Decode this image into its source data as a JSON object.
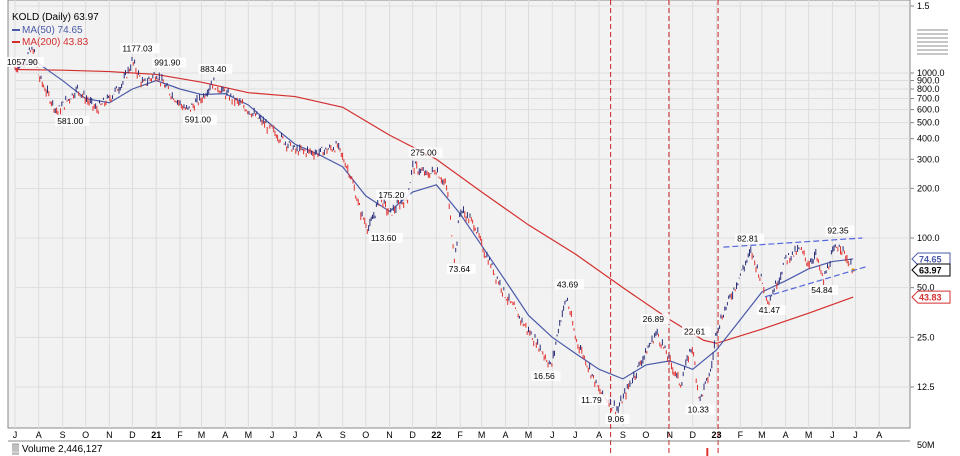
{
  "header": {
    "symbol_line": "KOLD (Daily) 63.97",
    "ma50_label": "MA(50) 74.65",
    "ma200_label": "MA(200) 43.83",
    "volume_label": "Volume 2,446,127"
  },
  "colors": {
    "up_bar": "#2b2f7a",
    "down_bar": "#e0312f",
    "ma50": "#4a5aa8",
    "ma200": "#d42f2f",
    "trendline": "#5566dd",
    "event_line": "#cc2222",
    "plot_bg": "#f2f2f2"
  },
  "chart_data": {
    "type": "line",
    "title": "KOLD (Daily) 63.97",
    "y_scale": "log",
    "y_ticks": [
      "1.5",
      "1000.0",
      "900.0",
      "800.0",
      "700.0",
      "600.0",
      "500.0",
      "400.0",
      "300.0",
      "200.0",
      "100.0",
      "50.0",
      "25.0",
      "12.5"
    ],
    "x_ticks": [
      "J",
      "A",
      "S",
      "O",
      "N",
      "D",
      "21",
      "F",
      "M",
      "A",
      "M",
      "J",
      "J",
      "A",
      "S",
      "O",
      "N",
      "D",
      "22",
      "F",
      "M",
      "A",
      "M",
      "J",
      "J",
      "A",
      "S",
      "O",
      "N",
      "D",
      "23",
      "F",
      "M",
      "A",
      "M",
      "J",
      "J",
      "A"
    ],
    "price_labels": {
      "last": "63.97",
      "ma50": "74.65",
      "ma200": "43.83"
    },
    "volume_axis_label": "50M",
    "annotations": [
      "1057.90",
      "581.00",
      "1177.03",
      "991.90",
      "883.40",
      "591.00",
      "175.20",
      "113.60",
      "275.00",
      "73.64",
      "43.69",
      "16.56",
      "11.79",
      "9.06",
      "26.89",
      "22.61",
      "10.33",
      "82.81",
      "41.47",
      "92.35",
      "54.84"
    ],
    "series": [
      {
        "name": "KOLD",
        "points": [
          [
            "2020-07",
            1057.9
          ],
          [
            "2020-07-25",
            1400
          ],
          [
            "2020-08",
            950
          ],
          [
            "2020-08-25",
            581.0
          ],
          [
            "2020-09-20",
            800
          ],
          [
            "2020-10-15",
            600
          ],
          [
            "2020-11",
            700
          ],
          [
            "2020-11-20",
            900
          ],
          [
            "2020-12",
            1177.03
          ],
          [
            "2020-12-15",
            850
          ],
          [
            "2021-01",
            991.9
          ],
          [
            "2021-01-15",
            800
          ],
          [
            "2021-02-10",
            591.0
          ],
          [
            "2021-03",
            700
          ],
          [
            "2021-03-15",
            883.4
          ],
          [
            "2021-04",
            750
          ],
          [
            "2021-05",
            600
          ],
          [
            "2021-06",
            450
          ],
          [
            "2021-07",
            340
          ],
          [
            "2021-08",
            330
          ],
          [
            "2021-08-25",
            360
          ],
          [
            "2021-09-10",
            250
          ],
          [
            "2021-09-25",
            140
          ],
          [
            "2021-10-05",
            113.6
          ],
          [
            "2021-10-20",
            175.2
          ],
          [
            "2021-11",
            140
          ],
          [
            "2021-11-25",
            180
          ],
          [
            "2021-12",
            275.0
          ],
          [
            "2021-12-20",
            240
          ],
          [
            "2022-01",
            260
          ],
          [
            "2022-01-15",
            200
          ],
          [
            "2022-01-25",
            73.64
          ],
          [
            "2022-02",
            150
          ],
          [
            "2022-02-20",
            120
          ],
          [
            "2022-03",
            90
          ],
          [
            "2022-04",
            45
          ],
          [
            "2022-04-25",
            30
          ],
          [
            "2022-05-15",
            22
          ],
          [
            "2022-05-31",
            16.56
          ],
          [
            "2022-06-10",
            30
          ],
          [
            "2022-06-20",
            43.69
          ],
          [
            "2022-07",
            25
          ],
          [
            "2022-07-20",
            16
          ],
          [
            "2022-08-01",
            11.79
          ],
          [
            "2022-08-25",
            9.06
          ],
          [
            "2022-09-10",
            13
          ],
          [
            "2022-09-25",
            18
          ],
          [
            "2022-10-15",
            26.89
          ],
          [
            "2022-11",
            18
          ],
          [
            "2022-11-15",
            13
          ],
          [
            "2022-11-30",
            22.61
          ],
          [
            "2022-12-10",
            10.33
          ],
          [
            "2022-12-25",
            16
          ],
          [
            "2023-01",
            28
          ],
          [
            "2023-01-20",
            45
          ],
          [
            "2023-02",
            60
          ],
          [
            "2023-02-15",
            82.81
          ],
          [
            "2023-03",
            55
          ],
          [
            "2023-03-10",
            41.47
          ],
          [
            "2023-03-25",
            60
          ],
          [
            "2023-04",
            75
          ],
          [
            "2023-04-20",
            85
          ],
          [
            "2023-05",
            70
          ],
          [
            "2023-05-10",
            80
          ],
          [
            "2023-05-20",
            54.84
          ],
          [
            "2023-06",
            80
          ],
          [
            "2023-06-10",
            92.35
          ],
          [
            "2023-06-20",
            75
          ],
          [
            "2023-06-28",
            63.97
          ]
        ]
      },
      {
        "name": "MA(50)",
        "points": [
          [
            "2020-07",
            1050
          ],
          [
            "2020-07-25",
            1200
          ],
          [
            "2020-09",
            900
          ],
          [
            "2020-10",
            700
          ],
          [
            "2020-11",
            660
          ],
          [
            "2020-12",
            800
          ],
          [
            "2021-01",
            900
          ],
          [
            "2021-02",
            800
          ],
          [
            "2021-03",
            740
          ],
          [
            "2021-04",
            750
          ],
          [
            "2021-05",
            640
          ],
          [
            "2021-06",
            480
          ],
          [
            "2021-07",
            370
          ],
          [
            "2021-08",
            320
          ],
          [
            "2021-09",
            270
          ],
          [
            "2021-10",
            180
          ],
          [
            "2021-11",
            145
          ],
          [
            "2021-12",
            190
          ],
          [
            "2022-01",
            210
          ],
          [
            "2022-02",
            140
          ],
          [
            "2022-03",
            90
          ],
          [
            "2022-04",
            55
          ],
          [
            "2022-05",
            34
          ],
          [
            "2022-06",
            25
          ],
          [
            "2022-07",
            20
          ],
          [
            "2022-08",
            16
          ],
          [
            "2022-09",
            14
          ],
          [
            "2022-10",
            17
          ],
          [
            "2022-11",
            18
          ],
          [
            "2022-12",
            16
          ],
          [
            "2023-01",
            21
          ],
          [
            "2023-02",
            32
          ],
          [
            "2023-03",
            47
          ],
          [
            "2023-04",
            55
          ],
          [
            "2023-05",
            65
          ],
          [
            "2023-06",
            72
          ],
          [
            "2023-06-28",
            74.65
          ]
        ]
      },
      {
        "name": "MA(200)",
        "points": [
          [
            "2020-07",
            1050
          ],
          [
            "2020-09",
            1040
          ],
          [
            "2020-11",
            1020
          ],
          [
            "2021-01",
            980
          ],
          [
            "2021-03",
            880
          ],
          [
            "2021-05",
            760
          ],
          [
            "2021-07",
            720
          ],
          [
            "2021-09",
            620
          ],
          [
            "2021-11",
            420
          ],
          [
            "2022-01",
            300
          ],
          [
            "2022-03",
            190
          ],
          [
            "2022-05",
            120
          ],
          [
            "2022-07",
            80
          ],
          [
            "2022-09",
            50
          ],
          [
            "2022-11",
            32
          ],
          [
            "2022-12-15",
            24
          ],
          [
            "2023-01",
            23
          ],
          [
            "2023-03",
            28
          ],
          [
            "2023-05",
            35
          ],
          [
            "2023-06-28",
            43.83
          ]
        ]
      }
    ],
    "event_lines": [
      "2022-08-16",
      "2022-10-31",
      "2023-01-03"
    ]
  }
}
